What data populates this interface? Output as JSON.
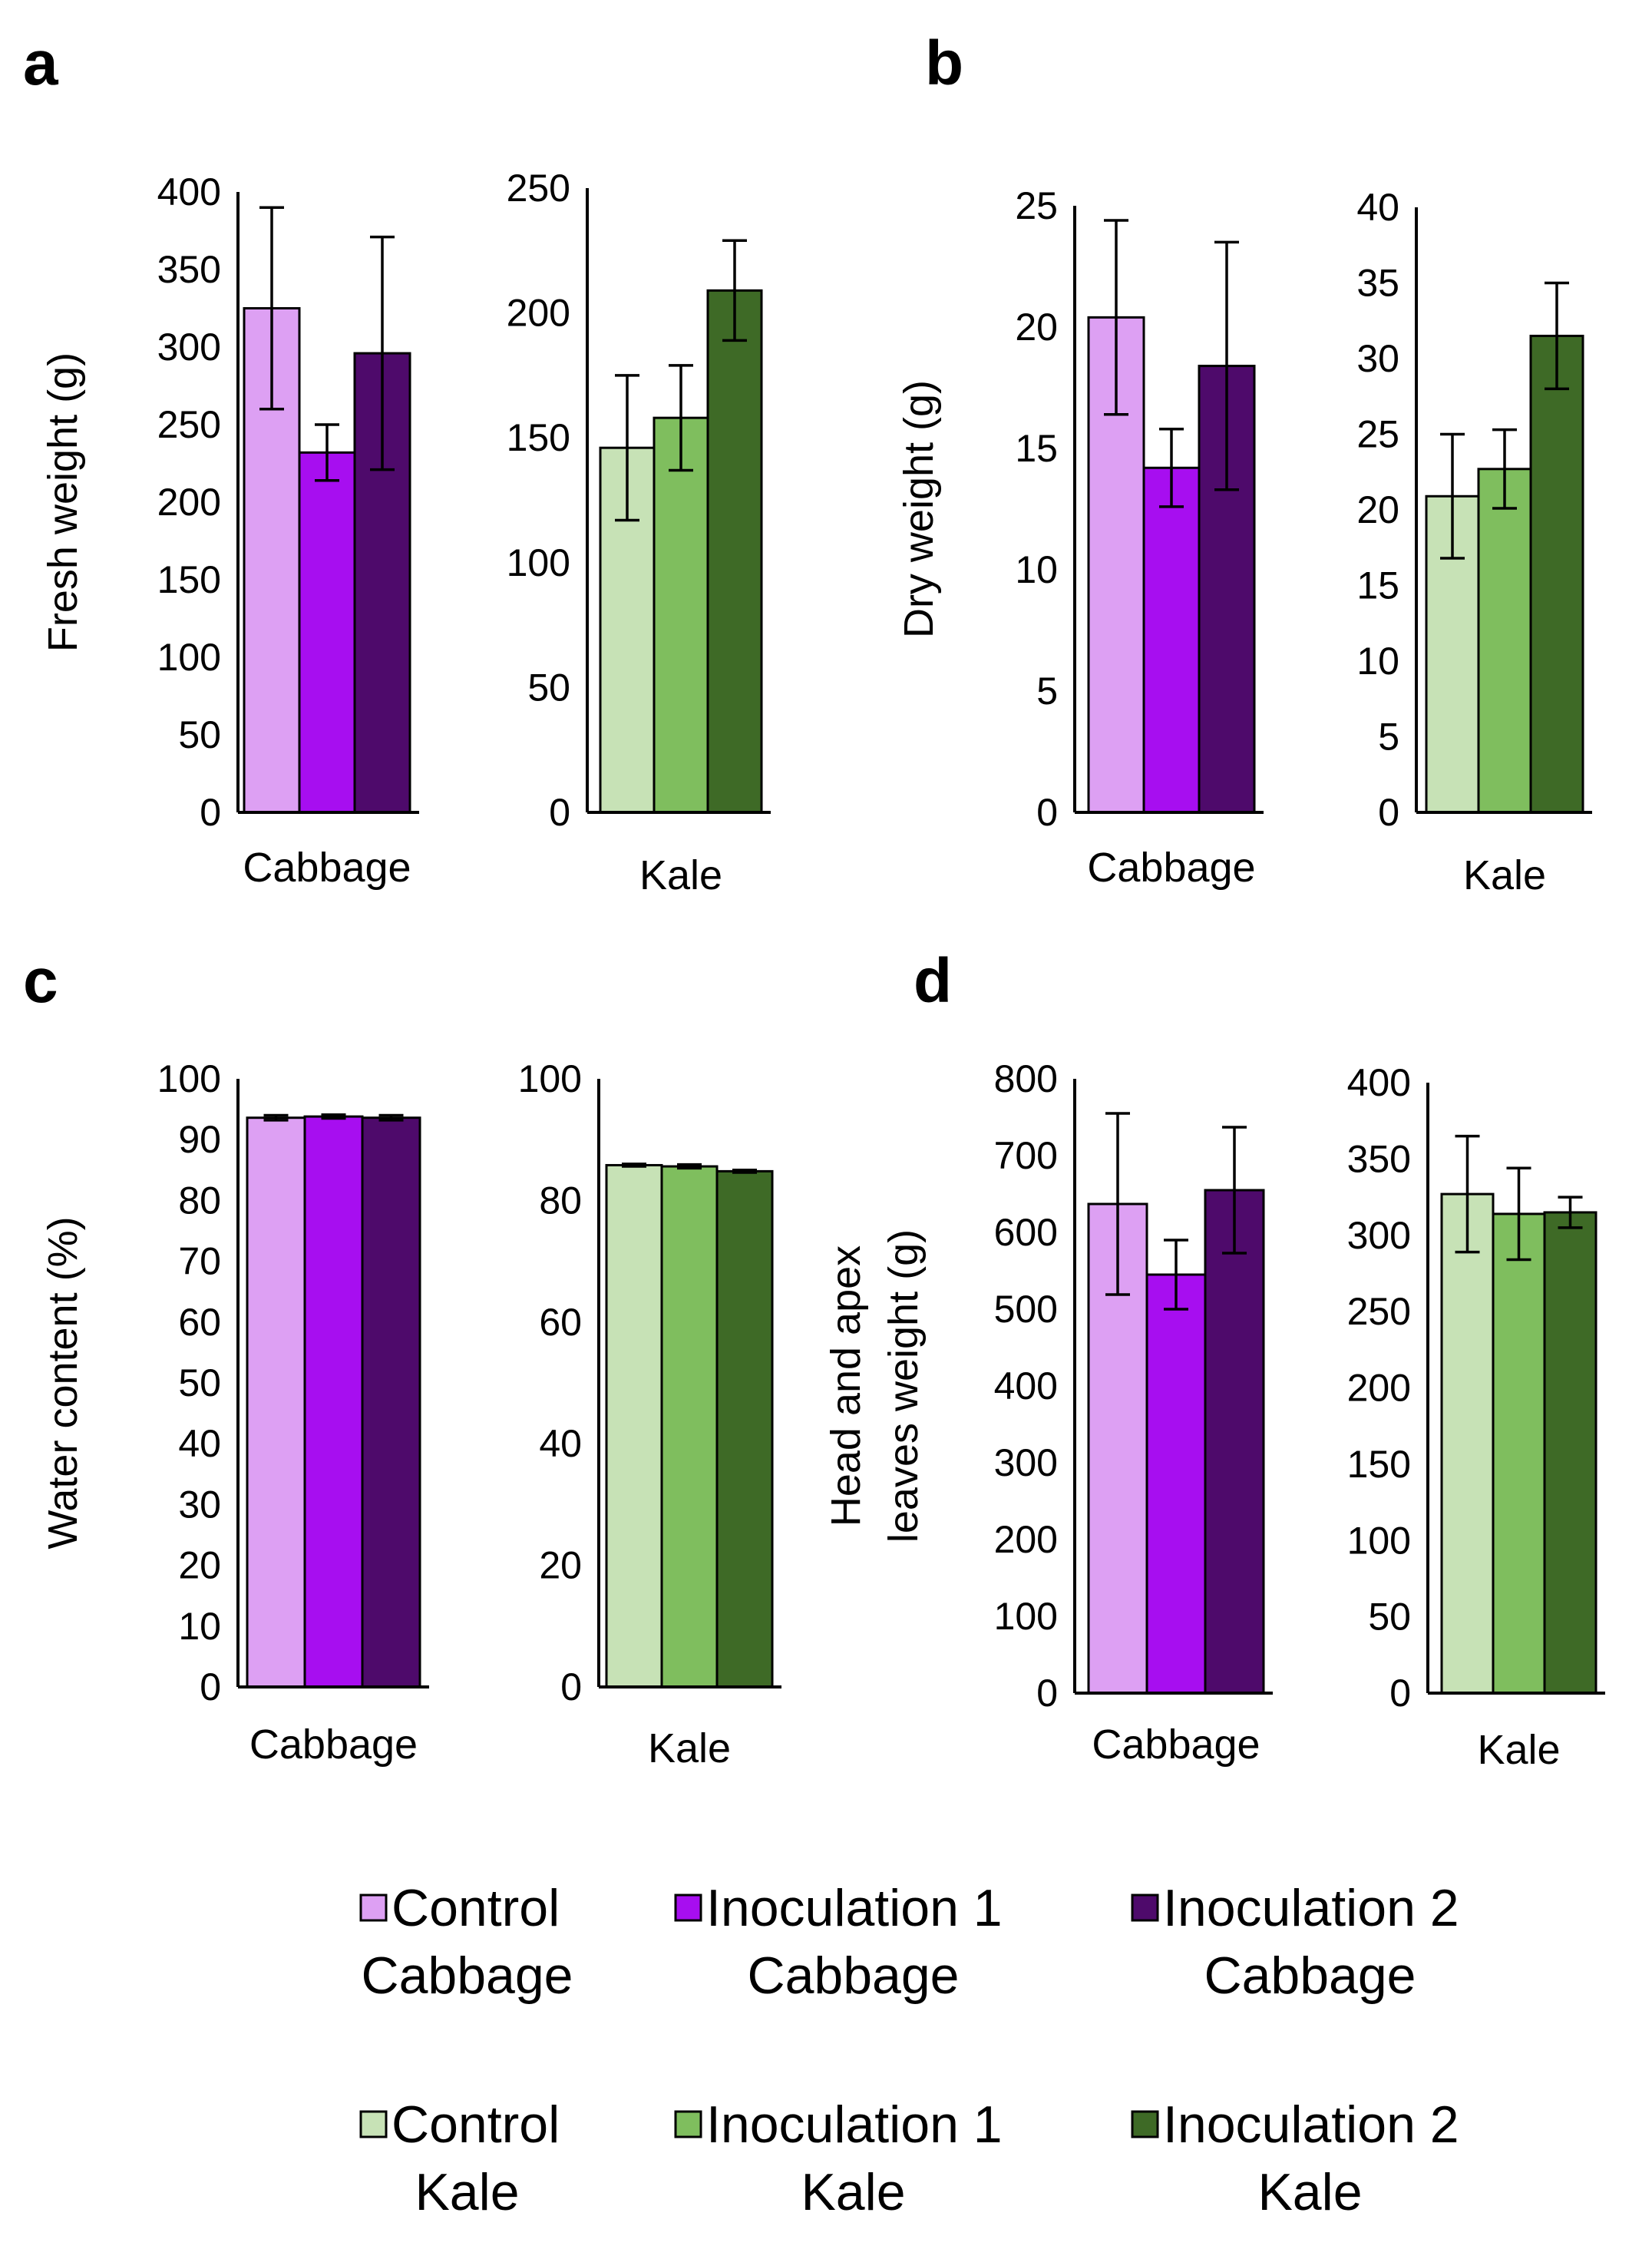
{
  "colors": {
    "control_cabbage": "#DDA0F3",
    "inoc1_cabbage": "#A70EF0",
    "inoc2_cabbage": "#4E0A6B",
    "control_kale": "#C7E2B6",
    "inoc1_kale": "#7FBE5E",
    "inoc2_kale": "#3E6A26"
  },
  "legend": {
    "items": [
      {
        "line1": "Control",
        "line2": "Cabbage",
        "color": "#DDA0F3"
      },
      {
        "line1": "Inoculation 1",
        "line2": "Cabbage",
        "color": "#A70EF0"
      },
      {
        "line1": "Inoculation 2",
        "line2": "Cabbage",
        "color": "#4E0A6B"
      },
      {
        "line1": "Control",
        "line2": "Kale",
        "color": "#C7E2B6"
      },
      {
        "line1": "Inoculation 1",
        "line2": "Kale",
        "color": "#7FBE5E"
      },
      {
        "line1": "Inoculation 2",
        "line2": "Kale",
        "color": "#3E6A26"
      }
    ]
  },
  "chart_data": [
    {
      "panel": "a",
      "type": "bar",
      "ylabel": "Fresh weight (g)",
      "subcharts": [
        {
          "category": "Cabbage",
          "ylim": [
            0,
            400
          ],
          "ticks": [
            "0",
            "50",
            "100",
            "150",
            "200",
            "250",
            "300",
            "350",
            "400"
          ],
          "series": [
            {
              "name": "Control Cabbage",
              "value": 325,
              "error": 65,
              "color": "#DDA0F3"
            },
            {
              "name": "Inoculation 1 Cabbage",
              "value": 232,
              "error": 18,
              "color": "#A70EF0"
            },
            {
              "name": "Inoculation 2 Cabbage",
              "value": 296,
              "error": 75,
              "color": "#4E0A6B"
            }
          ]
        },
        {
          "category": "Kale",
          "ylim": [
            0,
            250
          ],
          "ticks": [
            "0",
            "50",
            "100",
            "150",
            "200",
            "250"
          ],
          "series": [
            {
              "name": "Control Kale",
              "value": 146,
              "error": 29,
              "color": "#C7E2B6"
            },
            {
              "name": "Inoculation 1 Kale",
              "value": 158,
              "error": 21,
              "color": "#7FBE5E"
            },
            {
              "name": "Inoculation 2 Kale",
              "value": 209,
              "error": 20,
              "color": "#3E6A26"
            }
          ]
        }
      ]
    },
    {
      "panel": "b",
      "type": "bar",
      "ylabel": "Dry weight (g)",
      "subcharts": [
        {
          "category": "Cabbage",
          "ylim": [
            0,
            25
          ],
          "ticks": [
            "0",
            "5",
            "10",
            "15",
            "20",
            "25"
          ],
          "series": [
            {
              "name": "Control Cabbage",
              "value": 20.4,
              "error": 4.0,
              "color": "#DDA0F3"
            },
            {
              "name": "Inoculation 1 Cabbage",
              "value": 14.2,
              "error": 1.6,
              "color": "#A70EF0"
            },
            {
              "name": "Inoculation 2 Cabbage",
              "value": 18.4,
              "error": 5.1,
              "color": "#4E0A6B"
            }
          ]
        },
        {
          "category": "Kale",
          "ylim": [
            0,
            40
          ],
          "ticks": [
            "0",
            "5",
            "10",
            "15",
            "20",
            "25",
            "30",
            "35",
            "40"
          ],
          "series": [
            {
              "name": "Control Kale",
              "value": 20.9,
              "error": 4.1,
              "color": "#C7E2B6"
            },
            {
              "name": "Inoculation 1 Kale",
              "value": 22.7,
              "error": 2.6,
              "color": "#7FBE5E"
            },
            {
              "name": "Inoculation 2 Kale",
              "value": 31.5,
              "error": 3.5,
              "color": "#3E6A26"
            }
          ]
        }
      ]
    },
    {
      "panel": "c",
      "type": "bar",
      "ylabel": "Water content (%)",
      "subcharts": [
        {
          "category": "Cabbage",
          "ylim": [
            0,
            100
          ],
          "ticks": [
            "0",
            "10",
            "20",
            "30",
            "40",
            "50",
            "60",
            "70",
            "80",
            "90",
            "100"
          ],
          "series": [
            {
              "name": "Control Cabbage",
              "value": 93.6,
              "error": 0.4,
              "color": "#DDA0F3"
            },
            {
              "name": "Inoculation 1 Cabbage",
              "value": 93.8,
              "error": 0.3,
              "color": "#A70EF0"
            },
            {
              "name": "Inoculation 2 Cabbage",
              "value": 93.6,
              "error": 0.4,
              "color": "#4E0A6B"
            }
          ]
        },
        {
          "category": "Kale",
          "ylim": [
            0,
            100
          ],
          "ticks": [
            "0",
            "20",
            "40",
            "60",
            "80",
            "100"
          ],
          "series": [
            {
              "name": "Control Kale",
              "value": 85.8,
              "error": 0.2,
              "color": "#C7E2B6"
            },
            {
              "name": "Inoculation 1 Kale",
              "value": 85.6,
              "error": 0.3,
              "color": "#7FBE5E"
            },
            {
              "name": "Inoculation 2 Kale",
              "value": 84.8,
              "error": 0.2,
              "color": "#3E6A26"
            }
          ]
        }
      ]
    },
    {
      "panel": "d",
      "type": "bar",
      "ylabel": [
        "Head and apex",
        "leaves weight (g)"
      ],
      "subcharts": [
        {
          "category": "Cabbage",
          "ylim": [
            0,
            800
          ],
          "ticks": [
            "0",
            "100",
            "200",
            "300",
            "400",
            "500",
            "600",
            "700",
            "800"
          ],
          "series": [
            {
              "name": "Control Cabbage",
              "value": 637,
              "error": 118,
              "color": "#DDA0F3"
            },
            {
              "name": "Inoculation 1 Cabbage",
              "value": 545,
              "error": 45,
              "color": "#A70EF0"
            },
            {
              "name": "Inoculation 2 Cabbage",
              "value": 655,
              "error": 82,
              "color": "#4E0A6B"
            }
          ]
        },
        {
          "category": "Kale",
          "ylim": [
            0,
            400
          ],
          "ticks": [
            "0",
            "50",
            "100",
            "150",
            "200",
            "250",
            "300",
            "350",
            "400"
          ],
          "series": [
            {
              "name": "Control Kale",
              "value": 327,
              "error": 38,
              "color": "#C7E2B6"
            },
            {
              "name": "Inoculation 1 Kale",
              "value": 314,
              "error": 30,
              "color": "#7FBE5E"
            },
            {
              "name": "Inoculation 2 Kale",
              "value": 315,
              "error": 10,
              "color": "#3E6A26"
            }
          ]
        }
      ]
    }
  ]
}
